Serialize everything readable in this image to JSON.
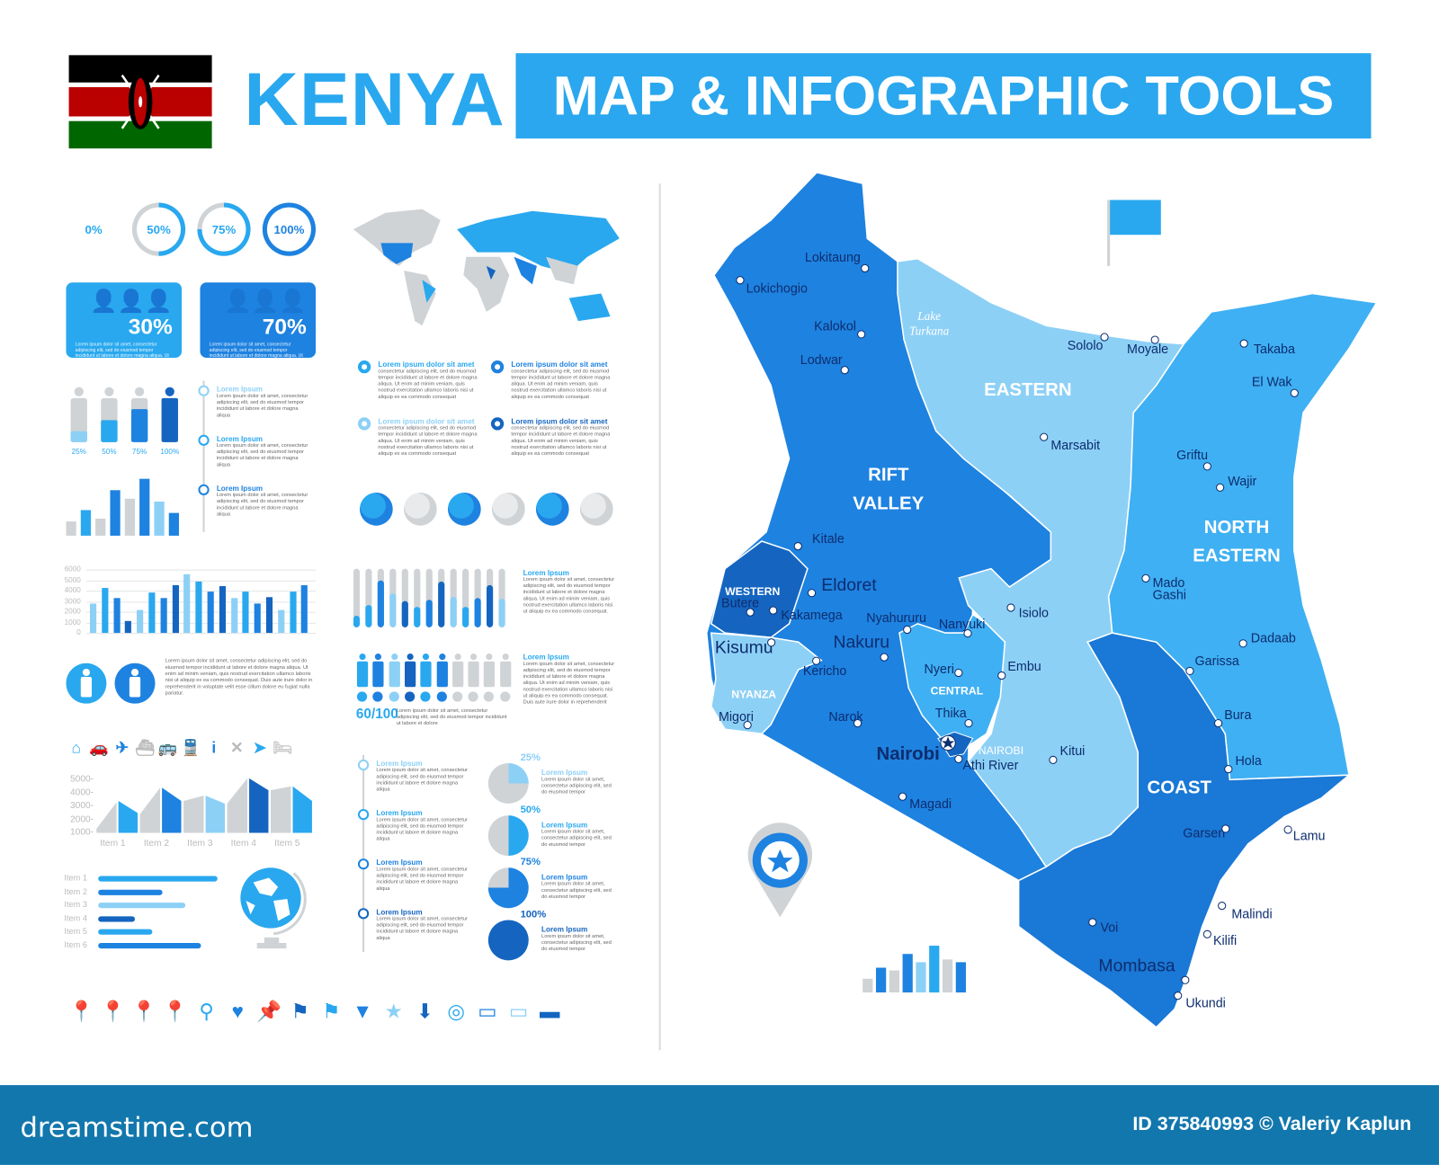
{
  "header": {
    "country": "KENYA",
    "title": "MAP & INFOGRAPHIC TOOLS"
  },
  "colors": {
    "light": "#8dd0f6",
    "sky": "#29a8ef",
    "mid": "#1e82e0",
    "dark": "#1565c0",
    "gray": "#cfd3d6",
    "navy": "#0d2d6e",
    "footer": "#1277ad"
  },
  "rings": [
    {
      "label": "0%",
      "value": 0
    },
    {
      "label": "50%",
      "value": 50
    },
    {
      "label": "75%",
      "value": 75
    },
    {
      "label": "100%",
      "value": 100
    }
  ],
  "stats": [
    {
      "value": "30%",
      "text": "Lorem ipsum dolor sit amet, consectetur adipiscing elit, sed do eiusmod tempor incididunt ut labore et dolore magna aliqua. Ut enim ad minim veniam, quis nostrud exercitation ullamco laboris nisi ut aliquip ex ea commodo consequat. Duis aute irure dolor in reprehenderit in voluptate velit esse cillum dolore eu."
    },
    {
      "value": "70%",
      "text": "Lorem ipsum dolor sit amet, consectetur adipiscing elit, sed do eiusmod tempor incididunt ut labore et dolore magna aliqua. Ut enim ad minim veniam, quis nostrud exercitation ullamco laboris nisi ut aliquip ex ea commodo consequat. Duis aute irure dolor in reprehenderit in voluptate velit esse cillum dolore eu."
    }
  ],
  "bullets": [
    {
      "title": "Lorem ipsum dolor sit amet",
      "text": "consectetur adipiscing elit, sed do eiusmod tempor incididunt ut labore et dolore magna aliqua. Ut enim ad minim veniam, quis nostrud exercitation ullamco laboris nisi ut aliquip ex ea commodo consequat"
    },
    {
      "title": "Lorem ipsum dolor sit amet",
      "text": "consectetur adipiscing elit, sed do eiusmod tempor incididunt ut labore et dolore magna aliqua. Ut enim ad minim veniam, quis nostrud exercitation ullamco laboris nisi ut aliquip ex ea commodo consequat"
    },
    {
      "title": "Lorem ipsum dolor sit amet",
      "text": "consectetur adipiscing elit, sed do eiusmod tempor incididunt ut labore et dolore magna aliqua. Ut enim ad minim veniam, quis nostrud exercitation ullamco laboris nisi ut aliquip ex ea commodo consequat"
    },
    {
      "title": "Lorem ipsum dolor sit amet",
      "text": "consectetur adipiscing elit, sed do eiusmod tempor incididunt ut labore et dolore magna aliqua. Ut enim ad minim veniam, quis nostrud exercitation ullamco laboris nisi ut aliquip ex ea commodo consequat"
    }
  ],
  "people_levels": [
    {
      "label": "25%",
      "value": 25
    },
    {
      "label": "50%",
      "value": 50
    },
    {
      "label": "75%",
      "value": 75
    },
    {
      "label": "100%",
      "value": 100
    }
  ],
  "timeline3": [
    {
      "title": "Lorem Ipsum",
      "text": "Lorem ipsum dolor sit amet, consectetur adipiscing elit, sed do eiusmod tempor incididunt ut labore et dolore magna aliqua"
    },
    {
      "title": "Lorem Ipsum",
      "text": "Lorem ipsum dolor sit amet, consectetur adipiscing elit, sed do eiusmod tempor incididunt ut labore et dolore magna aliqua"
    },
    {
      "title": "Lorem Ipsum",
      "text": "Lorem ipsum dolor sit amet, consectetur adipiscing elit, sed do eiusmod tempor incididunt ut labore et dolore magna aliqua"
    }
  ],
  "chart_data": [
    {
      "type": "bar",
      "title": "small-bars",
      "values": [
        25,
        45,
        30,
        80,
        65,
        100,
        60,
        40
      ]
    },
    {
      "type": "bar",
      "title": "column-chart",
      "yticks": [
        "6000",
        "5000",
        "4000",
        "3000",
        "2000",
        "1000",
        "0"
      ],
      "ylim": [
        0,
        6000
      ],
      "grid": true,
      "values": [
        2800,
        4300,
        3300,
        1100,
        2200,
        3800,
        3300,
        4500,
        5600,
        4900,
        3900,
        4400,
        3300,
        3900,
        2800,
        3400,
        2200,
        3900,
        4500
      ]
    },
    {
      "type": "bar",
      "title": "capsule-bars",
      "values": [
        20,
        38,
        80,
        58,
        45,
        35,
        47,
        78,
        52,
        35,
        50,
        72,
        49
      ]
    },
    {
      "type": "area",
      "title": "area-chart",
      "categories": [
        "Item 1",
        "Item 2",
        "Item 3",
        "Item 4",
        "Item 5"
      ],
      "yticks": [
        "5000-",
        "4000-",
        "3000-",
        "2000-",
        "1000-"
      ],
      "ylim": [
        1000,
        5000
      ],
      "series": [
        {
          "name": "gray",
          "values": [
            [
              1300,
              3300
            ],
            [
              2400,
              4400
            ],
            [
              3400,
              3800
            ],
            [
              3200,
              5100
            ],
            [
              4200,
              4500
            ]
          ]
        },
        {
          "name": "blue",
          "values": [
            [
              3400,
              2500
            ],
            [
              4400,
              3400
            ],
            [
              3800,
              3200
            ],
            [
              5100,
              4200
            ],
            [
              4500,
              3400
            ]
          ]
        }
      ]
    },
    {
      "type": "bar",
      "title": "horizontal-bars",
      "categories": [
        "Item 1",
        "Item 2",
        "Item 3",
        "Item 4",
        "Item 5",
        "Item 6"
      ],
      "values": [
        100,
        54,
        73,
        31,
        45,
        86
      ]
    },
    {
      "type": "pie",
      "title": "pies",
      "labels": [
        "25%",
        "50%",
        "75%",
        "100%"
      ],
      "values": [
        25,
        50,
        75,
        100
      ]
    },
    {
      "type": "bar",
      "title": "map-bars",
      "values": [
        25,
        45,
        40,
        70,
        55,
        85,
        60,
        55
      ]
    }
  ],
  "globe_count": 6,
  "capsule_text": {
    "title": "Lorem Ipsum",
    "text": "Lorem ipsum dolor sit amet, consectetur adipiscing elit, sed do eiusmod tempor incididunt ut labore et dolore magna aliqua. Ut enim ad minim veniam, quis nostrud exercitation ullamco laboris nisi ut aliquip ex ea commodo consequat."
  },
  "people_row": {
    "score": "60/100",
    "filled": 6,
    "total": 10,
    "caption": "Lorem ipsum dolor sit amet, consectetur adipiscing elit, sed do eiusmod tempor incididunt ut labore et dolore",
    "title": "Lorem Ipsum",
    "text": "Lorem ipsum dolor sit amet, consectetur adipiscing elit, sed do eiusmod tempor incididunt ut labore et dolore magna aliqua. Ut enim ad minim veniam, quis nostrud exercitation ullamco laboris nisi ut aliquip ex ea commodo consequat. Duis aute irure dolor in reprehenderit"
  },
  "gender_text": "Lorem ipsum dolor sit amet, consectetur adipiscing elit, sed do eiusmod tempor incididunt ut labore et dolore magna aliqua. Ut enim ad minim veniam, quis nostrud exercitation ullamco laboris nisi ut aliquip ex ea commodo consequat. Duis aute irure dolor in reprehenderit in voluptate velit esse cillum dolore eu fugiat nulla pariatur.",
  "icons": [
    "home-icon",
    "car-icon",
    "plane-icon",
    "ship-icon",
    "bus-icon",
    "train-icon",
    "info-icon",
    "restaurant-icon",
    "navigation-icon",
    "hotel-icon"
  ],
  "timeline4": [
    {
      "title": "Lorem Ipsum",
      "text": "Lorem ipsum dolor sit amet, consectetur adipiscing elit, sed do eiusmod tempor incididunt ut labore et dolore magna aliqua"
    },
    {
      "title": "Lorem Ipsum",
      "text": "Lorem ipsum dolor sit amet, consectetur adipiscing elit, sed do eiusmod tempor incididunt ut labore et dolore magna aliqua"
    },
    {
      "title": "Lorem Ipsum",
      "text": "Lorem ipsum dolor sit amet, consectetur adipiscing elit, sed do eiusmod tempor incididunt ut labore et dolore magna aliqua"
    },
    {
      "title": "Lorem Ipsum",
      "text": "Lorem ipsum dolor sit amet, consectetur adipiscing elit, sed do eiusmod tempor incididunt ut labore et dolore magna aliqua"
    }
  ],
  "pie_text": {
    "title": "Lorem Ipsum",
    "text": "Lorem ipsum dolor sit amet, consectetur adipiscing elit, sed do eiusmod tempor"
  },
  "pins": [
    "pin-icon",
    "pin-icon",
    "pin-icon",
    "pin-icon",
    "pushpin-icon",
    "heart-pin-icon",
    "thumbtack-icon",
    "flag-icon",
    "flag-icon",
    "triangle-pin-icon",
    "star-icon",
    "arrow-down-icon",
    "target-icon",
    "speech-bubble-icon",
    "speech-bubble-icon",
    "banner-icon"
  ],
  "map": {
    "regions": {
      "rift": "RIFT VALLEY",
      "eastern": "EASTERN",
      "north_eastern": "NORTH EASTERN",
      "coast": "COAST",
      "western": "WESTERN",
      "nyanza": "NYANZA",
      "central": "CENTRAL",
      "nairobi": "NAIROBI"
    },
    "lake": "Lake Turkana",
    "cities": [
      "Lokitaung",
      "Lokichogio",
      "Kalokol",
      "Lodwar",
      "Sololo",
      "Moyale",
      "Takaba",
      "El Wak",
      "Marsabit",
      "Griftu",
      "Wajir",
      "Kitale",
      "Eldoret",
      "Kakamega",
      "Butere",
      "Kisumu",
      "Nyahururu",
      "Nanyuki",
      "Nakuru",
      "Kericho",
      "Nyeri",
      "Embu",
      "Isiolo",
      "Mado Gashi",
      "Dadaab",
      "Garissa",
      "Migori",
      "Narok",
      "Thika",
      "Nairobi",
      "Athi River",
      "Kitui",
      "Bura",
      "Hola",
      "Magadi",
      "Garsen",
      "Lamu",
      "Malindi",
      "Kilifi",
      "Voi",
      "Mombasa",
      "Ukundi"
    ]
  },
  "footer": {
    "logo": "dreamstime.com",
    "credit": "ID 375840993 © Valeriy Kaplun"
  }
}
